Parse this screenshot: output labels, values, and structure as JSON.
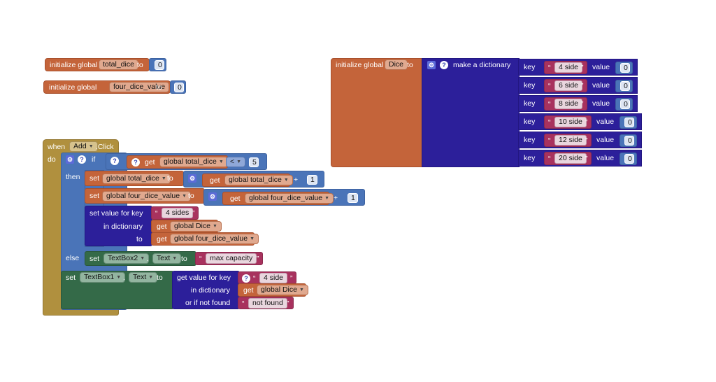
{
  "blocks": {
    "init_total_dice": {
      "label": "initialize global",
      "name": "total_dice",
      "to": "to",
      "value": "0"
    },
    "init_four_dice": {
      "label": "initialize global",
      "name": "four_dice_value",
      "to": "to",
      "value": "0"
    },
    "init_dice": {
      "label": "initialize global",
      "name": "Dice",
      "to": "to",
      "make_dict": "make a dictionary",
      "key_label": "key",
      "value_label": "value",
      "pairs": [
        {
          "key": "4 side",
          "value": "0"
        },
        {
          "key": "6 side",
          "value": "0"
        },
        {
          "key": "8 side",
          "value": "0"
        },
        {
          "key": "10 side",
          "value": "0"
        },
        {
          "key": "12 side",
          "value": "0"
        },
        {
          "key": "20 side",
          "value": "0"
        }
      ]
    },
    "event": {
      "when": "when",
      "component": "Add",
      "event": ".Click",
      "do": "do",
      "if": "if",
      "then": "then",
      "else": "else",
      "cond": {
        "get": "get",
        "var": "global total_dice",
        "op": "<",
        "value": "5"
      },
      "set1": {
        "set": "set",
        "var": "global total_dice",
        "to": "to",
        "get": "get",
        "get_var": "global total_dice",
        "op": "+",
        "value": "1"
      },
      "set2": {
        "set": "set",
        "var": "global four_dice_value",
        "to": "to",
        "get": "get",
        "get_var": "global four_dice_value",
        "op": "+",
        "value": "1"
      },
      "setdict": {
        "label": "set value for key",
        "key": "4 sides",
        "in_dict": "in dictionary",
        "get": "get",
        "dict": "global Dice",
        "to": "to",
        "val_var": "global four_dice_value"
      },
      "else_set": {
        "set": "set",
        "component": "TextBox2",
        "dot": ".",
        "prop": "Text",
        "to": "to",
        "value": "max capacity"
      },
      "final_set": {
        "set": "set",
        "component": "TextBox1",
        "dot": ".",
        "prop": "Text",
        "to": "to",
        "get_label": "get value for key",
        "key": "4 side",
        "in_dict": "in dictionary",
        "get": "get",
        "dict": "global Dice",
        "not_found_label": "or if not found",
        "not_found": "not found"
      }
    }
  },
  "icons": {
    "gear": "⚙",
    "help": "?",
    "quote": "“",
    "quote_close": "”"
  },
  "colors": {
    "variable": "#c4643a",
    "event": "#b0903e",
    "control": "#4a74b8",
    "dictionary": "#2c1f9a",
    "text": "#a8325e",
    "component": "#346a48"
  }
}
